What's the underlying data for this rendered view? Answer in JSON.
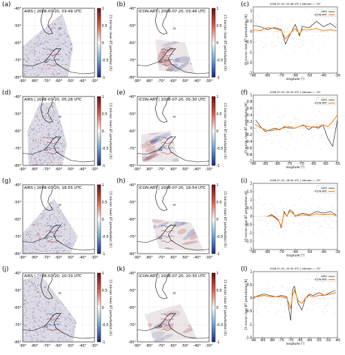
{
  "colors": {
    "airs": "#000000",
    "icon": "#ff7f0e",
    "pos": "#9b1c1c",
    "neg": "#24308a",
    "scatter": "#8c8c8c"
  },
  "icons": {
    "map_background": "coastline-outline"
  },
  "map_axes": {
    "lon_ticks": [
      "-90°",
      "-80°",
      "-70°",
      "-60°",
      "-50°",
      "-40°",
      "-30°"
    ],
    "lat_ticks": [
      "-40°",
      "-50°",
      "-60°",
      "-70°",
      "-80°"
    ],
    "colorbar_ticks": [
      "1",
      "0.5",
      "0",
      "-0.5",
      "-1"
    ],
    "colorbar_label": "15 micron (low) BT perturbation [K]"
  },
  "line_axes": {
    "ylabel": "15 micron (low) BT perturbation [K]",
    "xlabel": "longitude [°]",
    "legend": [
      "AIRS",
      "ICON-ART"
    ]
  },
  "rows": [
    {
      "airs": {
        "letter": "(a)",
        "title": "AIRS | 2008-07-20, 03:49 UTC"
      },
      "icon": {
        "letter": "(b)",
        "title": "ICON-ART | 2008-07-20, 03:48 UTC"
      },
      "line": {
        "letter": "(c)",
        "title": "2008-07-20, 03:48 UTC | latitude = -70°",
        "xticks": [
          "-90",
          "-80",
          "-70",
          "-60",
          "-50",
          "-40",
          "-30"
        ],
        "yticks": [
          "1",
          "0.5",
          "0",
          "-0.5",
          "-1",
          "-1.5",
          "-2"
        ],
        "xlim": [
          -90,
          -30
        ],
        "ylim": [
          -2,
          1.2
        ]
      }
    },
    {
      "airs": {
        "letter": "(d)",
        "title": "AIRS | 2008-07-20, 05:28 UTC"
      },
      "icon": {
        "letter": "(e)",
        "title": "ICON-ART | 2008-07-20, 05:30 UTC"
      },
      "line": {
        "letter": "(f)",
        "title": "2008-07-20, 05:30 UTC | latitude = -70°",
        "xticks": [
          "-90",
          "-85",
          "-80",
          "-75",
          "-70",
          "-65",
          "-60",
          "-55"
        ],
        "yticks": [
          "1",
          "0.8",
          "0.6",
          "0.4",
          "0.2",
          "0",
          "-0.2",
          "-0.4",
          "-0.6",
          "-0.8",
          "-1"
        ],
        "xlim": [
          -90,
          -55
        ],
        "ylim": [
          -1,
          1
        ]
      }
    },
    {
      "airs": {
        "letter": "(g)",
        "title": "AIRS | 2008-07-20, 18:55 UTC"
      },
      "icon": {
        "letter": "(h)",
        "title": "ICON-ART | 2008-07-20, 18:54 UTC"
      },
      "line": {
        "letter": "(i)",
        "title": "2008-07-20, 18:54 UTC | latitude = -70°",
        "xticks": [
          "-90",
          "-80",
          "-70",
          "-60",
          "-50",
          "-40",
          "-30"
        ],
        "yticks": [
          "2",
          "1.5",
          "1",
          "0.5",
          "0",
          "-0.5",
          "-1",
          "-1.5",
          "-2"
        ],
        "xlim": [
          -90,
          -30
        ],
        "ylim": [
          -2,
          2
        ]
      }
    },
    {
      "airs": {
        "letter": "(j)",
        "title": "AIRS | 2008-07-20, 20:33 UTC"
      },
      "icon": {
        "letter": "(k)",
        "title": "ICON-ART | 2008-07-20, 20:30 UTC"
      },
      "line": {
        "letter": "(l)",
        "title": "2008-07-20, 20:30 UTC | latitude = -70°",
        "xticks": [
          "-90",
          "-85",
          "-80",
          "-75",
          "-70",
          "-65",
          "-60",
          "-55",
          "-50",
          "-45"
        ],
        "yticks": [
          "1",
          "0.5",
          "0",
          "-0.5",
          "-1",
          "-1.5"
        ],
        "xlim": [
          -90,
          -45
        ],
        "ylim": [
          -1.5,
          1
        ]
      }
    }
  ],
  "chart_data": [
    {
      "type": "line",
      "panel": "(c)",
      "title": "2008-07-20, 03:48 UTC | latitude = -70°",
      "xlabel": "longitude [°]",
      "ylabel": "15 micron (low) BT perturbation [K]",
      "xlim": [
        -90,
        -30
      ],
      "ylim": [
        -2,
        1.2
      ],
      "series": [
        {
          "name": "AIRS",
          "x": [
            -90,
            -85,
            -80,
            -75,
            -70,
            -67,
            -65,
            -62,
            -60,
            -57,
            -55,
            -50,
            -45,
            -40,
            -35,
            -31
          ],
          "y": [
            0.3,
            0.25,
            0.1,
            0.2,
            0.1,
            -0.6,
            -0.3,
            0.1,
            0.35,
            -0.2,
            0.25,
            0.2,
            0.5,
            0.25,
            0.4,
            0.2
          ]
        },
        {
          "name": "ICON-ART",
          "x": [
            -90,
            -85,
            -80,
            -75,
            -70,
            -67,
            -65,
            -62,
            -60,
            -57,
            -55,
            -50,
            -45,
            -40,
            -35,
            -31
          ],
          "y": [
            0.1,
            0.05,
            0.2,
            0.15,
            0.05,
            -0.35,
            -0.2,
            0.05,
            0.15,
            -0.1,
            0.1,
            0.1,
            0.15,
            0.05,
            0.1,
            0.05
          ]
        }
      ]
    },
    {
      "type": "line",
      "panel": "(f)",
      "title": "2008-07-20, 05:30 UTC | latitude = -70°",
      "xlabel": "longitude [°]",
      "ylabel": "15 micron (low) BT perturbation [K]",
      "xlim": [
        -90,
        -55
      ],
      "ylim": [
        -1,
        1
      ],
      "series": [
        {
          "name": "AIRS",
          "x": [
            -89,
            -87,
            -85,
            -83,
            -81,
            -79,
            -77,
            -75,
            -73,
            -71,
            -69,
            -67,
            -65,
            -63,
            -61,
            -59,
            -57,
            -55
          ],
          "y": [
            0.25,
            0.05,
            -0.1,
            -0.05,
            0.0,
            -0.05,
            0.05,
            0.0,
            0.0,
            0.05,
            0.1,
            -0.05,
            0.05,
            0.0,
            0.1,
            -0.3,
            -0.55,
            0.25
          ]
        },
        {
          "name": "ICON-ART",
          "x": [
            -89,
            -87,
            -85,
            -83,
            -81,
            -79,
            -77,
            -75,
            -73,
            -71,
            -69,
            -67,
            -65,
            -63,
            -61,
            -59,
            -57,
            -55
          ],
          "y": [
            0.1,
            0.02,
            -0.05,
            -0.08,
            -0.05,
            -0.03,
            0.02,
            0.05,
            0.0,
            0.05,
            0.08,
            0.05,
            0.03,
            0.05,
            0.1,
            0.05,
            0.2,
            0.4
          ]
        }
      ]
    },
    {
      "type": "line",
      "panel": "(i)",
      "title": "2008-07-20, 18:54 UTC | latitude = -70°",
      "xlabel": "longitude [°]",
      "ylabel": "15 micron (low) BT perturbation [K]",
      "xlim": [
        -90,
        -30
      ],
      "ylim": [
        -2,
        2
      ],
      "series": [
        {
          "name": "AIRS",
          "x": [
            -80,
            -77,
            -75,
            -72,
            -70,
            -68,
            -66,
            -64,
            -62,
            -60,
            -58,
            -55,
            -50,
            -45,
            -40,
            -35,
            -31
          ],
          "y": [
            0.0,
            0.1,
            0.0,
            -0.2,
            -0.7,
            0.3,
            0.0,
            0.4,
            0.3,
            0.0,
            0.1,
            0.2,
            0.1,
            0.3,
            0.2,
            0.3,
            0.1
          ]
        },
        {
          "name": "ICON-ART",
          "x": [
            -80,
            -77,
            -75,
            -72,
            -70,
            -68,
            -66,
            -64,
            -62,
            -60,
            -58,
            -55,
            -50,
            -45,
            -40,
            -35,
            -31
          ],
          "y": [
            0.0,
            0.05,
            -0.05,
            -0.25,
            -0.6,
            0.2,
            0.05,
            0.3,
            0.2,
            0.05,
            0.05,
            0.1,
            0.05,
            0.15,
            0.1,
            0.15,
            0.05
          ]
        }
      ]
    },
    {
      "type": "line",
      "panel": "(l)",
      "title": "2008-07-20, 20:30 UTC | latitude = -70°",
      "xlabel": "longitude [°]",
      "ylabel": "15 micron (low) BT perturbation [K]",
      "xlim": [
        -90,
        -45
      ],
      "ylim": [
        -1.5,
        1
      ],
      "series": [
        {
          "name": "AIRS",
          "x": [
            -90,
            -87,
            -84,
            -81,
            -78,
            -75,
            -72,
            -70,
            -69,
            -68,
            -66,
            -64,
            -62,
            -60,
            -58,
            -55,
            -52,
            -49,
            -46
          ],
          "y": [
            0.0,
            0.1,
            0.15,
            0.1,
            0.05,
            0.1,
            0.05,
            -0.85,
            0.3,
            0.45,
            -0.2,
            -0.45,
            0.0,
            0.15,
            0.1,
            0.2,
            0.1,
            0.2,
            0.3
          ]
        },
        {
          "name": "ICON-ART",
          "x": [
            -90,
            -87,
            -84,
            -81,
            -78,
            -75,
            -72,
            -70,
            -69,
            -68,
            -66,
            -64,
            -62,
            -60,
            -58,
            -55,
            -52,
            -49,
            -46
          ],
          "y": [
            0.05,
            0.05,
            0.1,
            0.05,
            0.05,
            0.05,
            0.0,
            -0.4,
            0.1,
            0.3,
            -0.1,
            -0.2,
            0.0,
            0.1,
            0.05,
            0.1,
            0.1,
            0.15,
            0.2
          ]
        }
      ]
    }
  ]
}
